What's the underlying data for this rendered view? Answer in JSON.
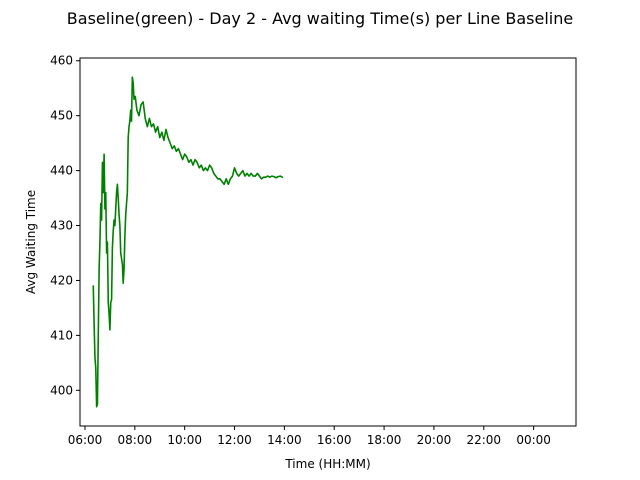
{
  "chart_data": {
    "type": "line",
    "title": "Baseline(green) - Day 2 - Avg waiting Time(s) per Line Baseline",
    "xlabel": "Time (HH:MM)",
    "ylabel": "Avg Waiting Time",
    "x_unit": "HH:MM",
    "xlim": [
      "05:48",
      "01:42"
    ],
    "ylim": [
      393.5,
      460.5
    ],
    "grid": false,
    "legend": "none",
    "x_ticks": [
      "06:00",
      "08:00",
      "10:00",
      "12:00",
      "14:00",
      "16:00",
      "18:00",
      "20:00",
      "22:00",
      "00:00"
    ],
    "y_ticks": [
      400,
      410,
      420,
      430,
      440,
      450,
      460
    ],
    "series": [
      {
        "color": "#008000",
        "points": [
          [
            "06:20",
            419.0
          ],
          [
            "06:22",
            412.0
          ],
          [
            "06:24",
            406.0
          ],
          [
            "06:26",
            404.0
          ],
          [
            "06:28",
            397.0
          ],
          [
            "06:30",
            397.5
          ],
          [
            "06:32",
            410.0
          ],
          [
            "06:34",
            422.0
          ],
          [
            "06:36",
            427.0
          ],
          [
            "06:38",
            434.0
          ],
          [
            "06:40",
            431.0
          ],
          [
            "06:42",
            441.5
          ],
          [
            "06:44",
            436.0
          ],
          [
            "06:46",
            443.0
          ],
          [
            "06:48",
            433.0
          ],
          [
            "06:50",
            436.0
          ],
          [
            "06:52",
            425.0
          ],
          [
            "06:54",
            427.0
          ],
          [
            "06:56",
            416.0
          ],
          [
            "06:58",
            414.0
          ],
          [
            "07:00",
            411.0
          ],
          [
            "07:02",
            416.0
          ],
          [
            "07:04",
            416.5
          ],
          [
            "07:06",
            426.0
          ],
          [
            "07:08",
            429.0
          ],
          [
            "07:10",
            431.0
          ],
          [
            "07:12",
            430.0
          ],
          [
            "07:14",
            433.0
          ],
          [
            "07:16",
            436.0
          ],
          [
            "07:18",
            437.5
          ],
          [
            "07:20",
            435.0
          ],
          [
            "07:22",
            432.0
          ],
          [
            "07:24",
            430.0
          ],
          [
            "07:26",
            425.0
          ],
          [
            "07:28",
            424.0
          ],
          [
            "07:30",
            423.0
          ],
          [
            "07:32",
            419.5
          ],
          [
            "07:34",
            422.0
          ],
          [
            "07:36",
            428.0
          ],
          [
            "07:38",
            432.0
          ],
          [
            "07:40",
            434.0
          ],
          [
            "07:42",
            436.0
          ],
          [
            "07:44",
            446.0
          ],
          [
            "07:46",
            448.0
          ],
          [
            "07:48",
            449.0
          ],
          [
            "07:50",
            451.0
          ],
          [
            "07:52",
            449.0
          ],
          [
            "07:54",
            457.0
          ],
          [
            "07:56",
            456.0
          ],
          [
            "07:58",
            453.0
          ],
          [
            "08:01",
            453.5
          ],
          [
            "08:05",
            451.0
          ],
          [
            "08:10",
            450.0
          ],
          [
            "08:15",
            452.0
          ],
          [
            "08:20",
            452.5
          ],
          [
            "08:25",
            449.5
          ],
          [
            "08:30",
            448.0
          ],
          [
            "08:35",
            449.5
          ],
          [
            "08:40",
            448.0
          ],
          [
            "08:45",
            448.5
          ],
          [
            "08:50",
            447.0
          ],
          [
            "08:55",
            448.0
          ],
          [
            "09:00",
            446.0
          ],
          [
            "09:05",
            447.0
          ],
          [
            "09:10",
            445.5
          ],
          [
            "09:15",
            447.5
          ],
          [
            "09:20",
            446.0
          ],
          [
            "09:25",
            445.0
          ],
          [
            "09:30",
            444.0
          ],
          [
            "09:35",
            444.5
          ],
          [
            "09:40",
            443.5
          ],
          [
            "09:45",
            444.0
          ],
          [
            "09:50",
            443.0
          ],
          [
            "09:55",
            442.0
          ],
          [
            "10:00",
            443.0
          ],
          [
            "10:05",
            442.5
          ],
          [
            "10:10",
            441.5
          ],
          [
            "10:15",
            442.0
          ],
          [
            "10:20",
            441.0
          ],
          [
            "10:25",
            442.0
          ],
          [
            "10:30",
            441.5
          ],
          [
            "10:35",
            440.5
          ],
          [
            "10:40",
            441.0
          ],
          [
            "10:45",
            440.0
          ],
          [
            "10:50",
            440.5
          ],
          [
            "10:55",
            440.0
          ],
          [
            "11:00",
            441.0
          ],
          [
            "11:05",
            440.5
          ],
          [
            "11:10",
            439.5
          ],
          [
            "11:15",
            439.0
          ],
          [
            "11:20",
            438.5
          ],
          [
            "11:25",
            438.5
          ],
          [
            "11:30",
            438.0
          ],
          [
            "11:35",
            437.5
          ],
          [
            "11:40",
            438.5
          ],
          [
            "11:45",
            437.5
          ],
          [
            "11:50",
            438.5
          ],
          [
            "11:55",
            439.0
          ],
          [
            "12:00",
            440.5
          ],
          [
            "12:05",
            439.5
          ],
          [
            "12:10",
            439.0
          ],
          [
            "12:15",
            439.5
          ],
          [
            "12:20",
            440.0
          ],
          [
            "12:25",
            439.0
          ],
          [
            "12:30",
            439.5
          ],
          [
            "12:35",
            439.0
          ],
          [
            "12:40",
            439.5
          ],
          [
            "12:45",
            439.0
          ],
          [
            "12:50",
            439.0
          ],
          [
            "12:55",
            439.5
          ],
          [
            "13:00",
            439.0
          ],
          [
            "13:05",
            438.5
          ],
          [
            "13:10",
            438.8
          ],
          [
            "13:15",
            438.8
          ],
          [
            "13:20",
            439.0
          ],
          [
            "13:25",
            438.8
          ],
          [
            "13:30",
            439.0
          ],
          [
            "13:35",
            438.9
          ],
          [
            "13:40",
            438.7
          ],
          [
            "13:45",
            438.9
          ],
          [
            "13:50",
            439.0
          ],
          [
            "13:55",
            438.8
          ]
        ]
      }
    ]
  }
}
